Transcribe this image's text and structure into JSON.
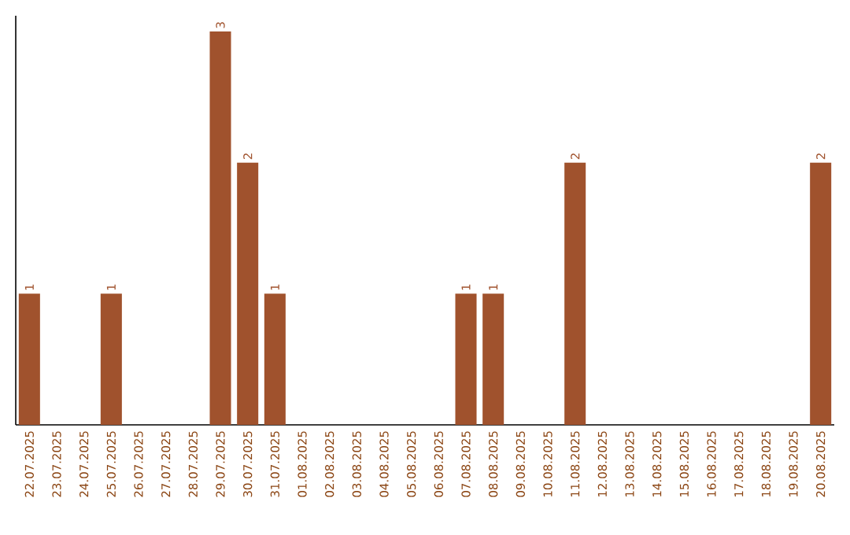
{
  "chart_data": {
    "type": "bar",
    "categories": [
      "22.07.2025",
      "23.07.2025",
      "24.07.2025",
      "25.07.2025",
      "26.07.2025",
      "27.07.2025",
      "28.07.2025",
      "29.07.2025",
      "30.07.2025",
      "31.07.2025",
      "01.08.2025",
      "02.08.2025",
      "03.08.2025",
      "04.08.2025",
      "05.08.2025",
      "06.08.2025",
      "07.08.2025",
      "08.08.2025",
      "09.08.2025",
      "10.08.2025",
      "11.08.2025",
      "12.08.2025",
      "13.08.2025",
      "14.08.2025",
      "15.08.2025",
      "16.08.2025",
      "17.08.2025",
      "18.08.2025",
      "19.08.2025",
      "20.08.2025"
    ],
    "values": [
      1,
      0,
      0,
      1,
      0,
      0,
      0,
      3,
      2,
      1,
      0,
      0,
      0,
      0,
      0,
      0,
      1,
      1,
      0,
      0,
      2,
      0,
      0,
      0,
      0,
      0,
      0,
      0,
      0,
      2
    ],
    "value_labels": [
      "1",
      null,
      null,
      "1",
      null,
      null,
      null,
      "3",
      "2",
      "1",
      null,
      null,
      null,
      null,
      null,
      null,
      "1",
      "1",
      null,
      null,
      "2",
      null,
      null,
      null,
      null,
      null,
      null,
      null,
      null,
      "2"
    ],
    "color": "#a0522d"
  }
}
